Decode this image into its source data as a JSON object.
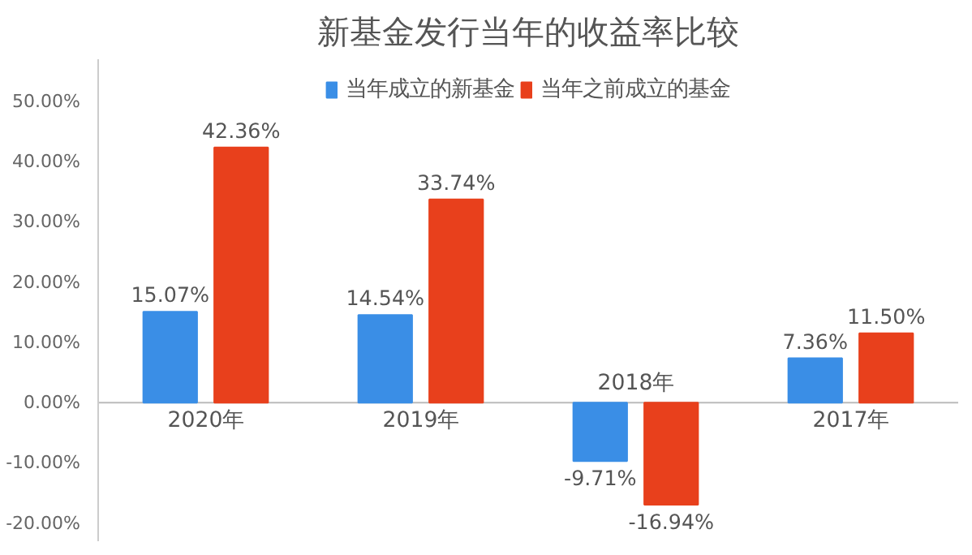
{
  "chart_data": {
    "type": "bar",
    "title": "新基金发行当年的收益率比较",
    "categories": [
      "2020年",
      "2019年",
      "2018年",
      "2017年"
    ],
    "series": [
      {
        "name": "当年成立的新基金",
        "color": "#3a8ee6",
        "values": [
          15.07,
          14.54,
          -9.71,
          7.36
        ],
        "value_labels": [
          "15.07%",
          "14.54%",
          "-9.71%",
          "7.36%"
        ]
      },
      {
        "name": "当年之前成立的基金",
        "color": "#e8401c",
        "values": [
          42.36,
          33.74,
          -16.94,
          11.5
        ],
        "value_labels": [
          "42.36%",
          "33.74%",
          "-16.94%",
          "11.50%"
        ]
      }
    ],
    "ylim": [
      -23,
      57
    ],
    "yticks": [
      {
        "value": -20,
        "label": "-20.00%"
      },
      {
        "value": -10,
        "label": "-10.00%"
      },
      {
        "value": 0,
        "label": "0.00%"
      },
      {
        "value": 10,
        "label": "10.00%"
      },
      {
        "value": 20,
        "label": "20.00%"
      },
      {
        "value": 30,
        "label": "30.00%"
      },
      {
        "value": 40,
        "label": "40.00%"
      },
      {
        "value": 50,
        "label": "50.00%"
      }
    ],
    "grid": false,
    "legend": "top"
  }
}
